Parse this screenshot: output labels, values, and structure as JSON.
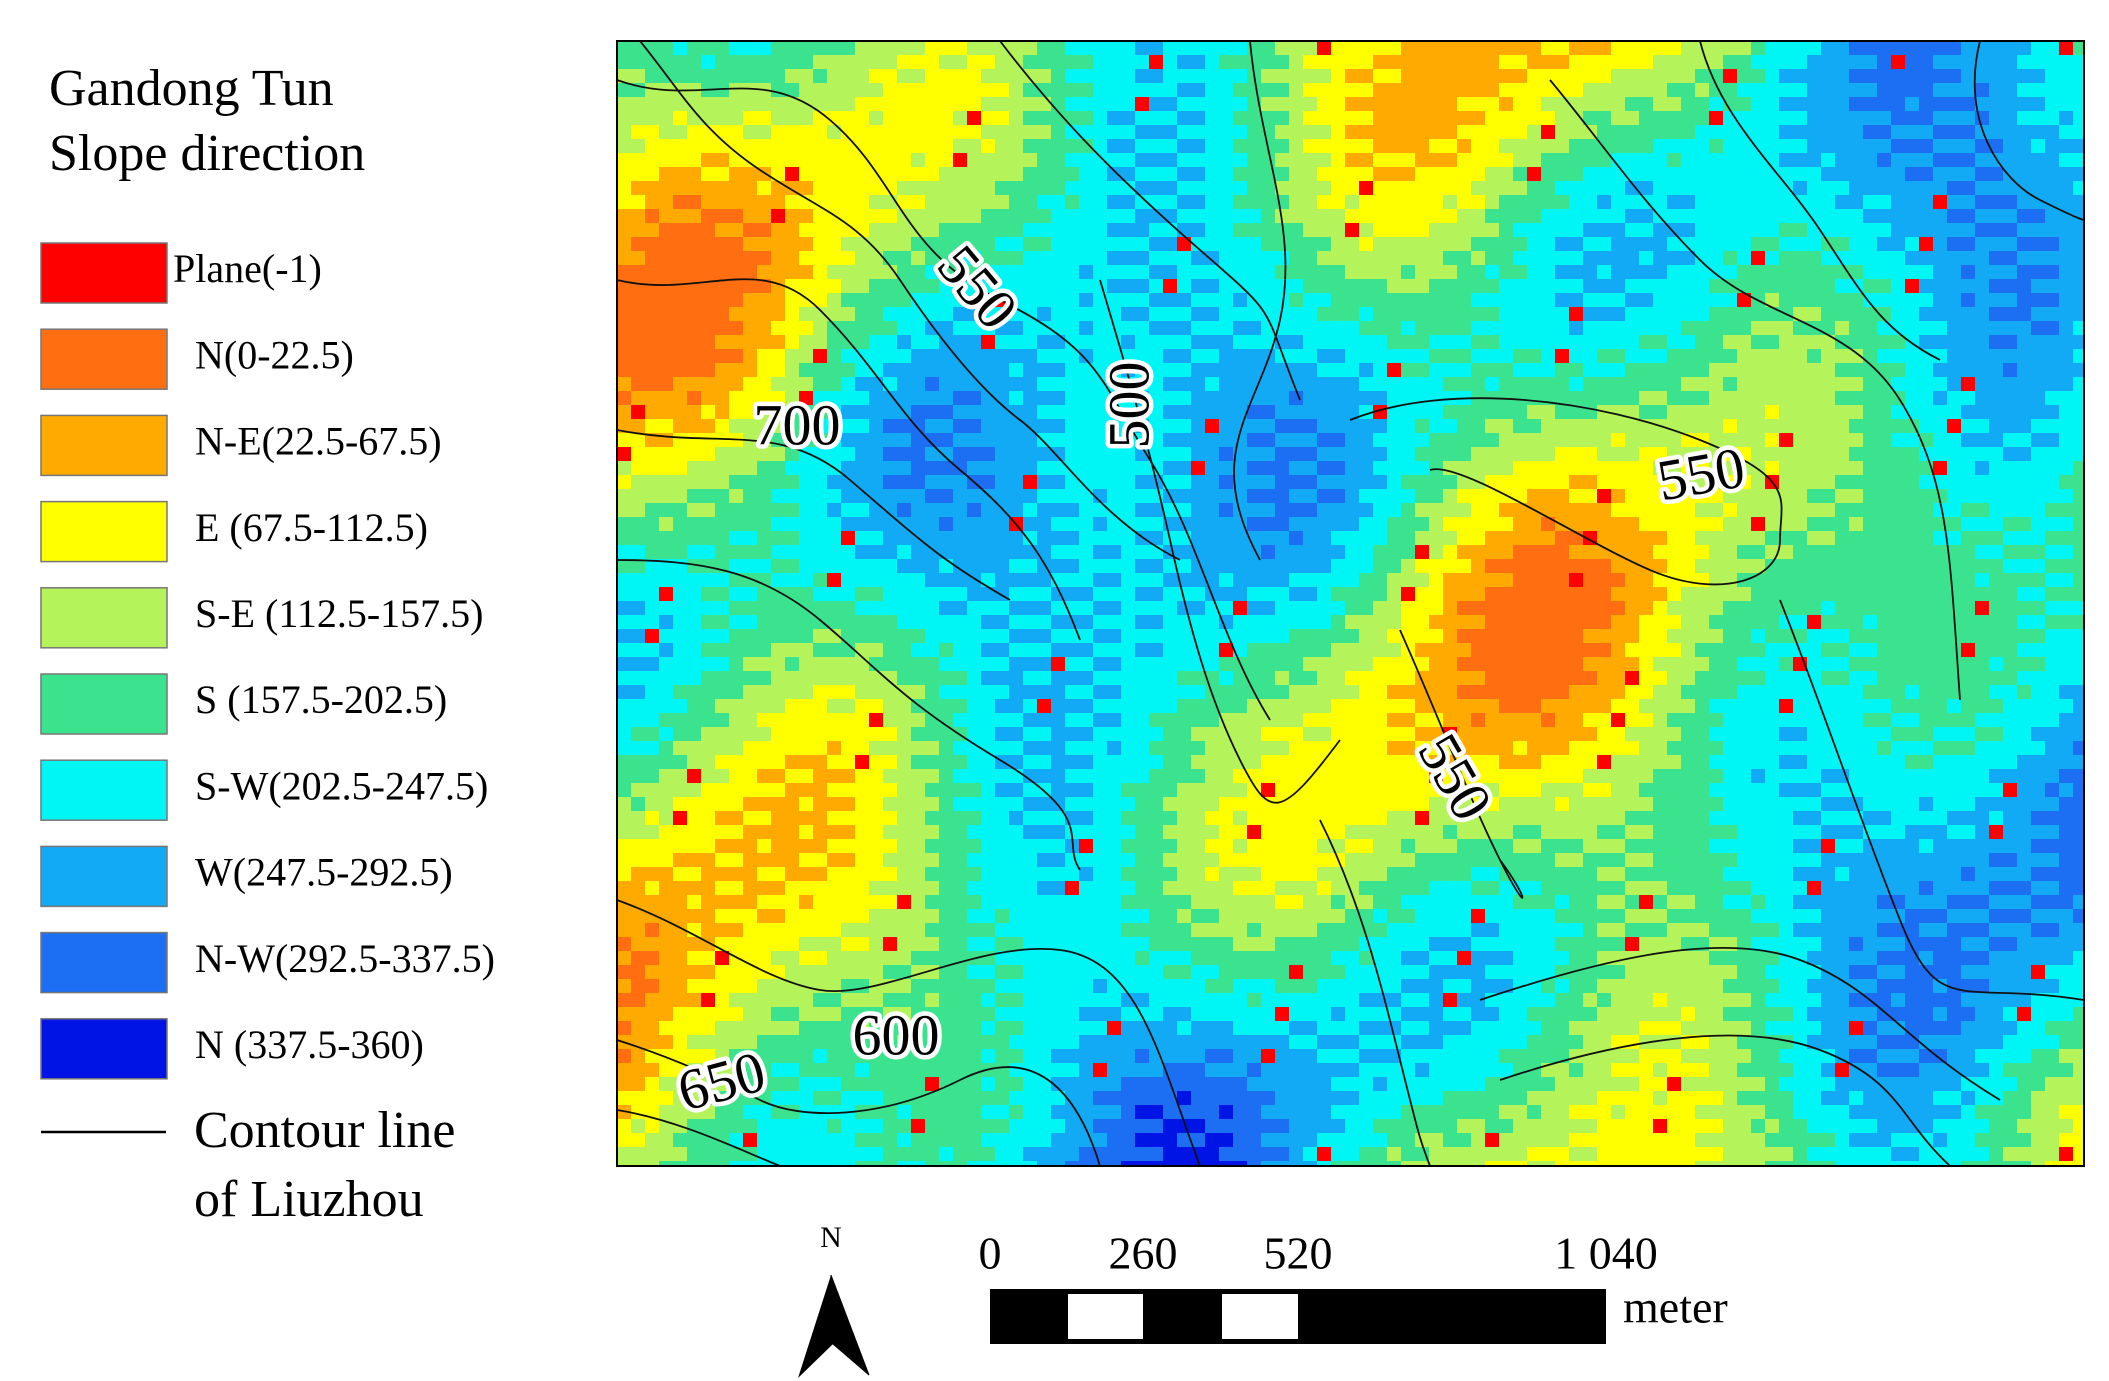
{
  "legend": {
    "title": [
      "Gandong Tun",
      "Slope direction"
    ],
    "items": [
      {
        "label": "Plane(-1)",
        "color": "#ff0000"
      },
      {
        "label": "N(0-22.5)",
        "color": "#ff6e10"
      },
      {
        "label": "N-E(22.5-67.5)",
        "color": "#ffaa00"
      },
      {
        "label": "E (67.5-112.5)",
        "color": "#ffff00"
      },
      {
        "label": "S-E (112.5-157.5)",
        "color": "#b4f35a"
      },
      {
        "label": "S (157.5-202.5)",
        "color": "#3ce38e"
      },
      {
        "label": "S-W(202.5-247.5)",
        "color": "#00f5f5"
      },
      {
        "label": "W(247.5-292.5)",
        "color": "#12aaf5"
      },
      {
        "label": "N-W(292.5-337.5)",
        "color": "#1c6ef2"
      },
      {
        "label": "N (337.5-360)",
        "color": "#0014e6"
      }
    ],
    "contour": [
      "Contour line",
      "of Liuzhou"
    ]
  },
  "map": {
    "contour_labels": [
      "550",
      "700",
      "500",
      "550",
      "550",
      "600",
      "650"
    ]
  },
  "north": "N",
  "scale_bar": {
    "labels": [
      "0",
      "260",
      "520",
      "1 040"
    ],
    "unit": "meter"
  }
}
